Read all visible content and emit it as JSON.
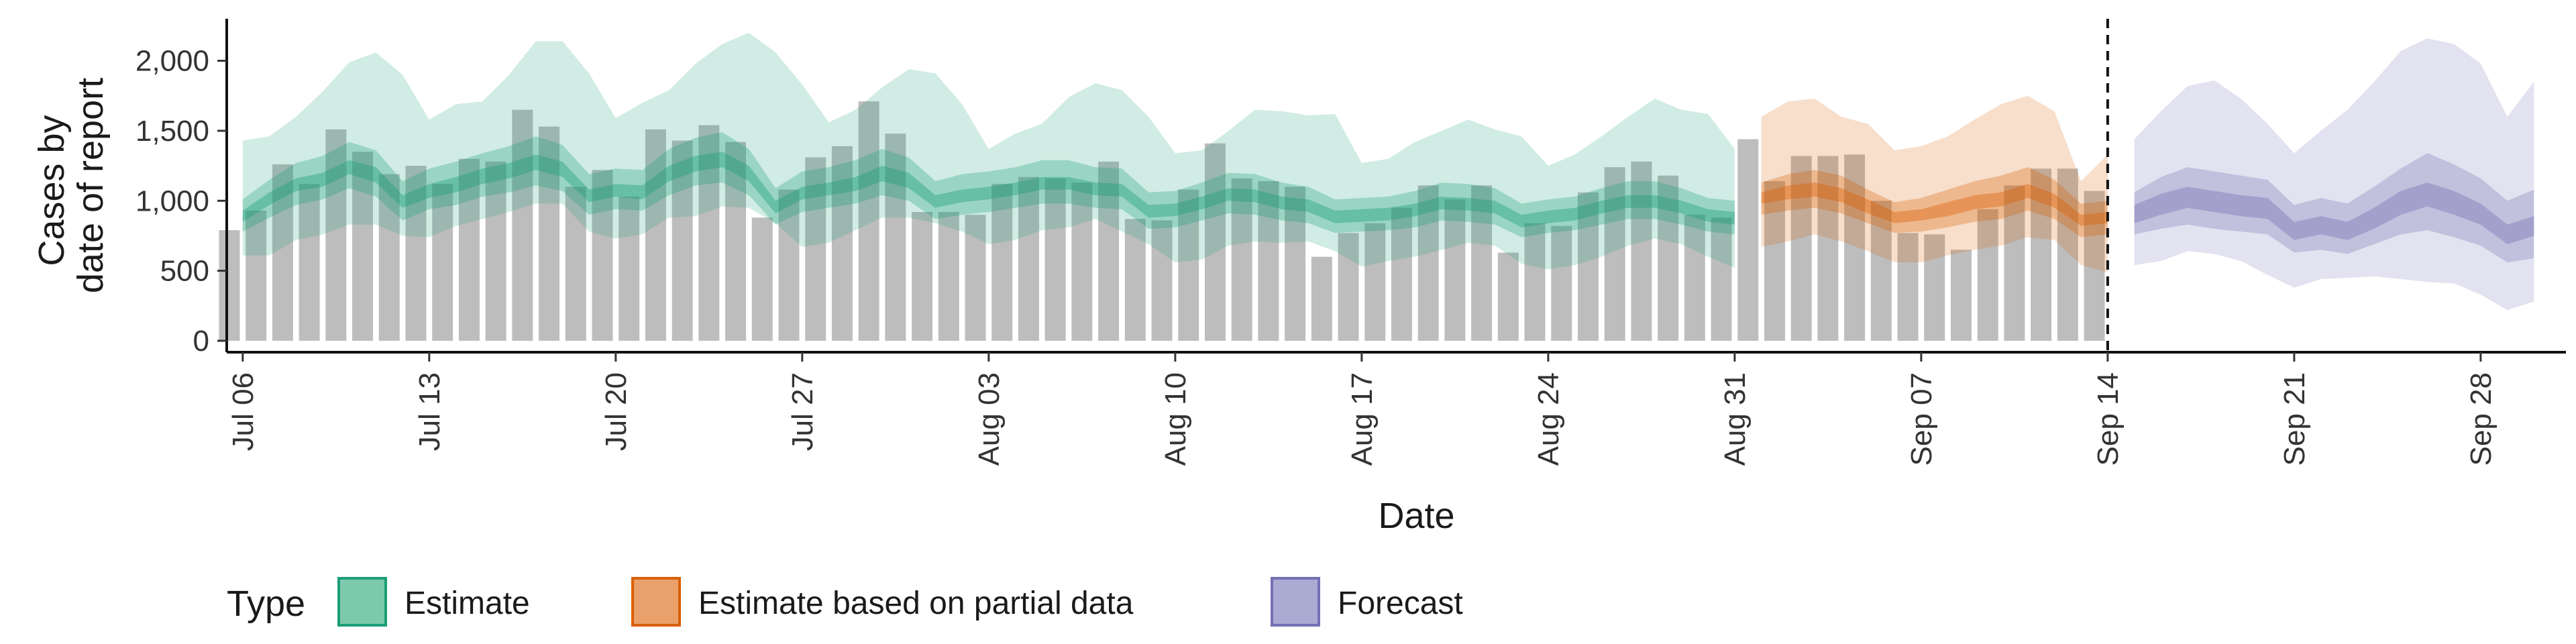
{
  "chart_data": {
    "type": "bar",
    "xlabel": "Date",
    "ylabel_lines": [
      "Cases by",
      "date of report"
    ],
    "ylim": [
      0,
      2300
    ],
    "y_ticks": [
      0,
      500,
      1000,
      1500,
      2000
    ],
    "y_tick_labels": [
      "0",
      "500",
      "1,000",
      "1,500",
      "2,000"
    ],
    "x_tick_labels": [
      "Jul 06",
      "Jul 13",
      "Jul 20",
      "Jul 27",
      "Aug 03",
      "Aug 10",
      "Aug 17",
      "Aug 24",
      "Aug 31",
      "Sep 07",
      "Sep 14",
      "Sep 21",
      "Sep 28"
    ],
    "x_tick_days": [
      0,
      7,
      14,
      21,
      28,
      35,
      42,
      49,
      56,
      63,
      70,
      77,
      84
    ],
    "x_day_range": [
      -0.6,
      87.2
    ],
    "forecast_start_day": 70,
    "legend": {
      "title": "Type",
      "position": "bottom-left",
      "entries": [
        {
          "label": "Estimate",
          "fill": "#7cc9ae",
          "stroke": "#1b9e77"
        },
        {
          "label": "Estimate based on partial data",
          "fill": "#eaa06a",
          "stroke": "#d95f02"
        },
        {
          "label": "Forecast",
          "fill": "#aaaad2",
          "stroke": "#7570b3"
        }
      ]
    },
    "colors": {
      "bars": "#bdbdbd",
      "Estimate": "#1b9e77",
      "Estimate based on partial data": "#d95f02",
      "Forecast": "#7570b3"
    },
    "bar_start_day": -0.5,
    "bar_values": [
      790,
      930,
      1260,
      1120,
      1510,
      1350,
      1190,
      1250,
      1120,
      1300,
      1280,
      1650,
      1530,
      1100,
      1220,
      1030,
      1510,
      1430,
      1540,
      1420,
      880,
      1080,
      1310,
      1390,
      1710,
      1480,
      920,
      920,
      900,
      1120,
      1170,
      1160,
      1130,
      1280,
      870,
      860,
      1080,
      1410,
      1160,
      1140,
      1100,
      600,
      770,
      840,
      950,
      1110,
      1010,
      1110,
      630,
      840,
      820,
      1060,
      1240,
      1280,
      1180,
      900,
      880,
      1440,
      1140,
      1320,
      1320,
      1330,
      1000,
      770,
      760,
      650,
      940,
      1110,
      1230,
      1230,
      1070
    ],
    "series": [
      {
        "name": "Estimate",
        "x_start": 0,
        "median": [
          890,
          1010,
          1110,
          1150,
          1240,
          1180,
          990,
          1070,
          1110,
          1170,
          1210,
          1270,
          1220,
          1030,
          1070,
          1060,
          1190,
          1260,
          1290,
          1190,
          950,
          1050,
          1080,
          1120,
          1190,
          1140,
          990,
          1030,
          1050,
          1080,
          1120,
          1120,
          1080,
          1070,
          920,
          930,
          980,
          1040,
          1030,
          980,
          960,
          880,
          890,
          900,
          930,
          980,
          970,
          950,
          850,
          880,
          900,
          950,
          990,
          990,
          950,
          890,
          870
        ],
        "ci20": [
          [
            850,
            930
          ],
          [
            970,
            1060
          ],
          [
            1070,
            1160
          ],
          [
            1100,
            1200
          ],
          [
            1190,
            1290
          ],
          [
            1130,
            1240
          ],
          [
            950,
            1040
          ],
          [
            1020,
            1120
          ],
          [
            1060,
            1170
          ],
          [
            1120,
            1230
          ],
          [
            1160,
            1270
          ],
          [
            1220,
            1330
          ],
          [
            1170,
            1280
          ],
          [
            990,
            1080
          ],
          [
            1030,
            1120
          ],
          [
            1010,
            1110
          ],
          [
            1140,
            1250
          ],
          [
            1210,
            1320
          ],
          [
            1240,
            1350
          ],
          [
            1140,
            1250
          ],
          [
            910,
            1000
          ],
          [
            1010,
            1100
          ],
          [
            1040,
            1130
          ],
          [
            1070,
            1170
          ],
          [
            1140,
            1250
          ],
          [
            1090,
            1200
          ],
          [
            950,
            1040
          ],
          [
            990,
            1080
          ],
          [
            1010,
            1100
          ],
          [
            1040,
            1130
          ],
          [
            1080,
            1170
          ],
          [
            1080,
            1170
          ],
          [
            1040,
            1130
          ],
          [
            1030,
            1120
          ],
          [
            880,
            970
          ],
          [
            890,
            980
          ],
          [
            940,
            1030
          ],
          [
            1000,
            1090
          ],
          [
            990,
            1080
          ],
          [
            940,
            1030
          ],
          [
            920,
            1010
          ],
          [
            840,
            930
          ],
          [
            850,
            940
          ],
          [
            860,
            950
          ],
          [
            890,
            980
          ],
          [
            940,
            1030
          ],
          [
            930,
            1020
          ],
          [
            910,
            1000
          ],
          [
            810,
            900
          ],
          [
            840,
            930
          ],
          [
            860,
            950
          ],
          [
            910,
            1000
          ],
          [
            950,
            1040
          ],
          [
            950,
            1040
          ],
          [
            910,
            1000
          ],
          [
            850,
            940
          ],
          [
            830,
            920
          ]
        ],
        "ci50": [
          [
            780,
            1010
          ],
          [
            880,
            1150
          ],
          [
            970,
            1270
          ],
          [
            1010,
            1320
          ],
          [
            1090,
            1420
          ],
          [
            1030,
            1360
          ],
          [
            860,
            1140
          ],
          [
            940,
            1230
          ],
          [
            970,
            1280
          ],
          [
            1030,
            1340
          ],
          [
            1060,
            1390
          ],
          [
            1110,
            1460
          ],
          [
            1070,
            1400
          ],
          [
            900,
            1190
          ],
          [
            940,
            1230
          ],
          [
            930,
            1220
          ],
          [
            1040,
            1370
          ],
          [
            1110,
            1450
          ],
          [
            1130,
            1490
          ],
          [
            1040,
            1370
          ],
          [
            830,
            1090
          ],
          [
            920,
            1210
          ],
          [
            950,
            1240
          ],
          [
            980,
            1290
          ],
          [
            1040,
            1370
          ],
          [
            1000,
            1310
          ],
          [
            870,
            1140
          ],
          [
            900,
            1190
          ],
          [
            920,
            1210
          ],
          [
            950,
            1240
          ],
          [
            980,
            1290
          ],
          [
            980,
            1290
          ],
          [
            950,
            1240
          ],
          [
            940,
            1230
          ],
          [
            800,
            1060
          ],
          [
            810,
            1070
          ],
          [
            860,
            1130
          ],
          [
            910,
            1200
          ],
          [
            900,
            1190
          ],
          [
            860,
            1130
          ],
          [
            840,
            1100
          ],
          [
            770,
            1010
          ],
          [
            780,
            1020
          ],
          [
            790,
            1030
          ],
          [
            810,
            1070
          ],
          [
            860,
            1130
          ],
          [
            850,
            1120
          ],
          [
            830,
            1090
          ],
          [
            740,
            980
          ],
          [
            770,
            1010
          ],
          [
            790,
            1030
          ],
          [
            830,
            1090
          ],
          [
            870,
            1140
          ],
          [
            870,
            1140
          ],
          [
            830,
            1090
          ],
          [
            780,
            1020
          ],
          [
            760,
            1000
          ]
        ],
        "ci90": [
          [
            610,
            1430
          ],
          [
            610,
            1460
          ],
          [
            720,
            1600
          ],
          [
            760,
            1780
          ],
          [
            830,
            1990
          ],
          [
            830,
            2060
          ],
          [
            750,
            1900
          ],
          [
            740,
            1580
          ],
          [
            820,
            1690
          ],
          [
            870,
            1710
          ],
          [
            920,
            1900
          ],
          [
            980,
            2140
          ],
          [
            980,
            2140
          ],
          [
            780,
            1910
          ],
          [
            730,
            1590
          ],
          [
            760,
            1700
          ],
          [
            880,
            1790
          ],
          [
            890,
            1980
          ],
          [
            960,
            2120
          ],
          [
            950,
            2200
          ],
          [
            840,
            2060
          ],
          [
            670,
            1830
          ],
          [
            700,
            1560
          ],
          [
            790,
            1650
          ],
          [
            880,
            1810
          ],
          [
            880,
            1940
          ],
          [
            840,
            1910
          ],
          [
            780,
            1690
          ],
          [
            690,
            1370
          ],
          [
            720,
            1480
          ],
          [
            790,
            1550
          ],
          [
            810,
            1740
          ],
          [
            870,
            1840
          ],
          [
            780,
            1790
          ],
          [
            690,
            1600
          ],
          [
            560,
            1340
          ],
          [
            580,
            1360
          ],
          [
            680,
            1500
          ],
          [
            710,
            1650
          ],
          [
            700,
            1640
          ],
          [
            710,
            1610
          ],
          [
            640,
            1620
          ],
          [
            530,
            1270
          ],
          [
            570,
            1300
          ],
          [
            600,
            1420
          ],
          [
            650,
            1500
          ],
          [
            700,
            1580
          ],
          [
            680,
            1510
          ],
          [
            550,
            1460
          ],
          [
            510,
            1250
          ],
          [
            540,
            1330
          ],
          [
            600,
            1460
          ],
          [
            680,
            1600
          ],
          [
            730,
            1730
          ],
          [
            690,
            1650
          ],
          [
            600,
            1620
          ],
          [
            520,
            1370
          ]
        ]
      },
      {
        "name": "Estimate based on partial data",
        "x_start": 57,
        "median": [
          1020,
          1060,
          1080,
          1040,
          960,
          880,
          900,
          940,
          990,
          1010,
          1070,
          1000,
          860,
          880
        ],
        "ci20": [
          [
            980,
            1060
          ],
          [
            1010,
            1110
          ],
          [
            1030,
            1130
          ],
          [
            990,
            1090
          ],
          [
            910,
            1010
          ],
          [
            840,
            920
          ],
          [
            860,
            940
          ],
          [
            890,
            990
          ],
          [
            940,
            1040
          ],
          [
            960,
            1060
          ],
          [
            1020,
            1120
          ],
          [
            950,
            1050
          ],
          [
            820,
            900
          ],
          [
            840,
            920
          ]
        ],
        "ci50": [
          [
            900,
            1130
          ],
          [
            930,
            1190
          ],
          [
            950,
            1220
          ],
          [
            910,
            1180
          ],
          [
            840,
            1080
          ],
          [
            770,
            990
          ],
          [
            780,
            1020
          ],
          [
            810,
            1080
          ],
          [
            850,
            1140
          ],
          [
            870,
            1180
          ],
          [
            930,
            1240
          ],
          [
            870,
            1150
          ],
          [
            740,
            980
          ],
          [
            760,
            1000
          ]
        ],
        "ci90": [
          [
            670,
            1600
          ],
          [
            710,
            1710
          ],
          [
            760,
            1730
          ],
          [
            710,
            1600
          ],
          [
            640,
            1550
          ],
          [
            560,
            1360
          ],
          [
            560,
            1390
          ],
          [
            610,
            1460
          ],
          [
            650,
            1580
          ],
          [
            680,
            1690
          ],
          [
            740,
            1750
          ],
          [
            720,
            1640
          ],
          [
            540,
            1140
          ],
          [
            490,
            1330
          ]
        ]
      },
      {
        "name": "Forecast",
        "x_start": 71,
        "median": [
          900,
          970,
          1020,
          990,
          960,
          940,
          780,
          820,
          780,
          870,
          980,
          1040,
          980,
          900,
          760,
          820
        ],
        "ci20": [
          [
            840,
            970
          ],
          [
            900,
            1050
          ],
          [
            950,
            1100
          ],
          [
            920,
            1070
          ],
          [
            890,
            1040
          ],
          [
            870,
            1020
          ],
          [
            720,
            850
          ],
          [
            760,
            890
          ],
          [
            720,
            850
          ],
          [
            800,
            950
          ],
          [
            900,
            1070
          ],
          [
            960,
            1130
          ],
          [
            900,
            1070
          ],
          [
            830,
            980
          ],
          [
            690,
            830
          ],
          [
            750,
            890
          ]
        ],
        "ci50": [
          [
            760,
            1060
          ],
          [
            800,
            1170
          ],
          [
            830,
            1240
          ],
          [
            800,
            1210
          ],
          [
            780,
            1180
          ],
          [
            760,
            1150
          ],
          [
            630,
            970
          ],
          [
            650,
            1020
          ],
          [
            620,
            980
          ],
          [
            690,
            1100
          ],
          [
            760,
            1230
          ],
          [
            790,
            1340
          ],
          [
            740,
            1260
          ],
          [
            680,
            1160
          ],
          [
            560,
            1000
          ],
          [
            590,
            1080
          ]
        ],
        "ci90": [
          [
            540,
            1440
          ],
          [
            570,
            1640
          ],
          [
            640,
            1820
          ],
          [
            620,
            1860
          ],
          [
            570,
            1730
          ],
          [
            470,
            1550
          ],
          [
            380,
            1340
          ],
          [
            440,
            1500
          ],
          [
            450,
            1650
          ],
          [
            460,
            1850
          ],
          [
            440,
            2070
          ],
          [
            420,
            2160
          ],
          [
            410,
            2120
          ],
          [
            330,
            1980
          ],
          [
            220,
            1600
          ],
          [
            280,
            1850
          ]
        ]
      }
    ]
  }
}
